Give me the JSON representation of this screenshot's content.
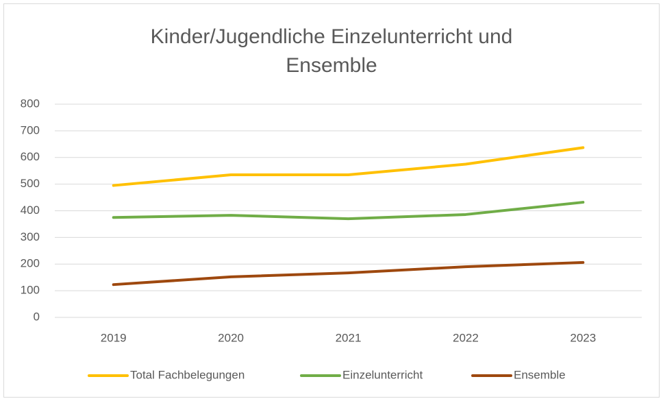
{
  "chart_data": {
    "type": "line",
    "title": "Kinder/Jugendliche Einzelunterricht und Ensemble",
    "categories": [
      "2019",
      "2020",
      "2021",
      "2022",
      "2023"
    ],
    "series": [
      {
        "name": "Total Fachbelegungen",
        "color": "#ffc000",
        "values": [
          495,
          535,
          535,
          575,
          637
        ]
      },
      {
        "name": "Einzelunterricht",
        "color": "#70ad47",
        "values": [
          375,
          383,
          370,
          386,
          432
        ]
      },
      {
        "name": "Ensemble",
        "color": "#9e480e",
        "values": [
          123,
          152,
          167,
          190,
          206
        ]
      }
    ],
    "ylim": [
      0,
      800
    ],
    "yticks": [
      0,
      100,
      200,
      300,
      400,
      500,
      600,
      700,
      800
    ],
    "grid": true,
    "legend": "bottom"
  }
}
